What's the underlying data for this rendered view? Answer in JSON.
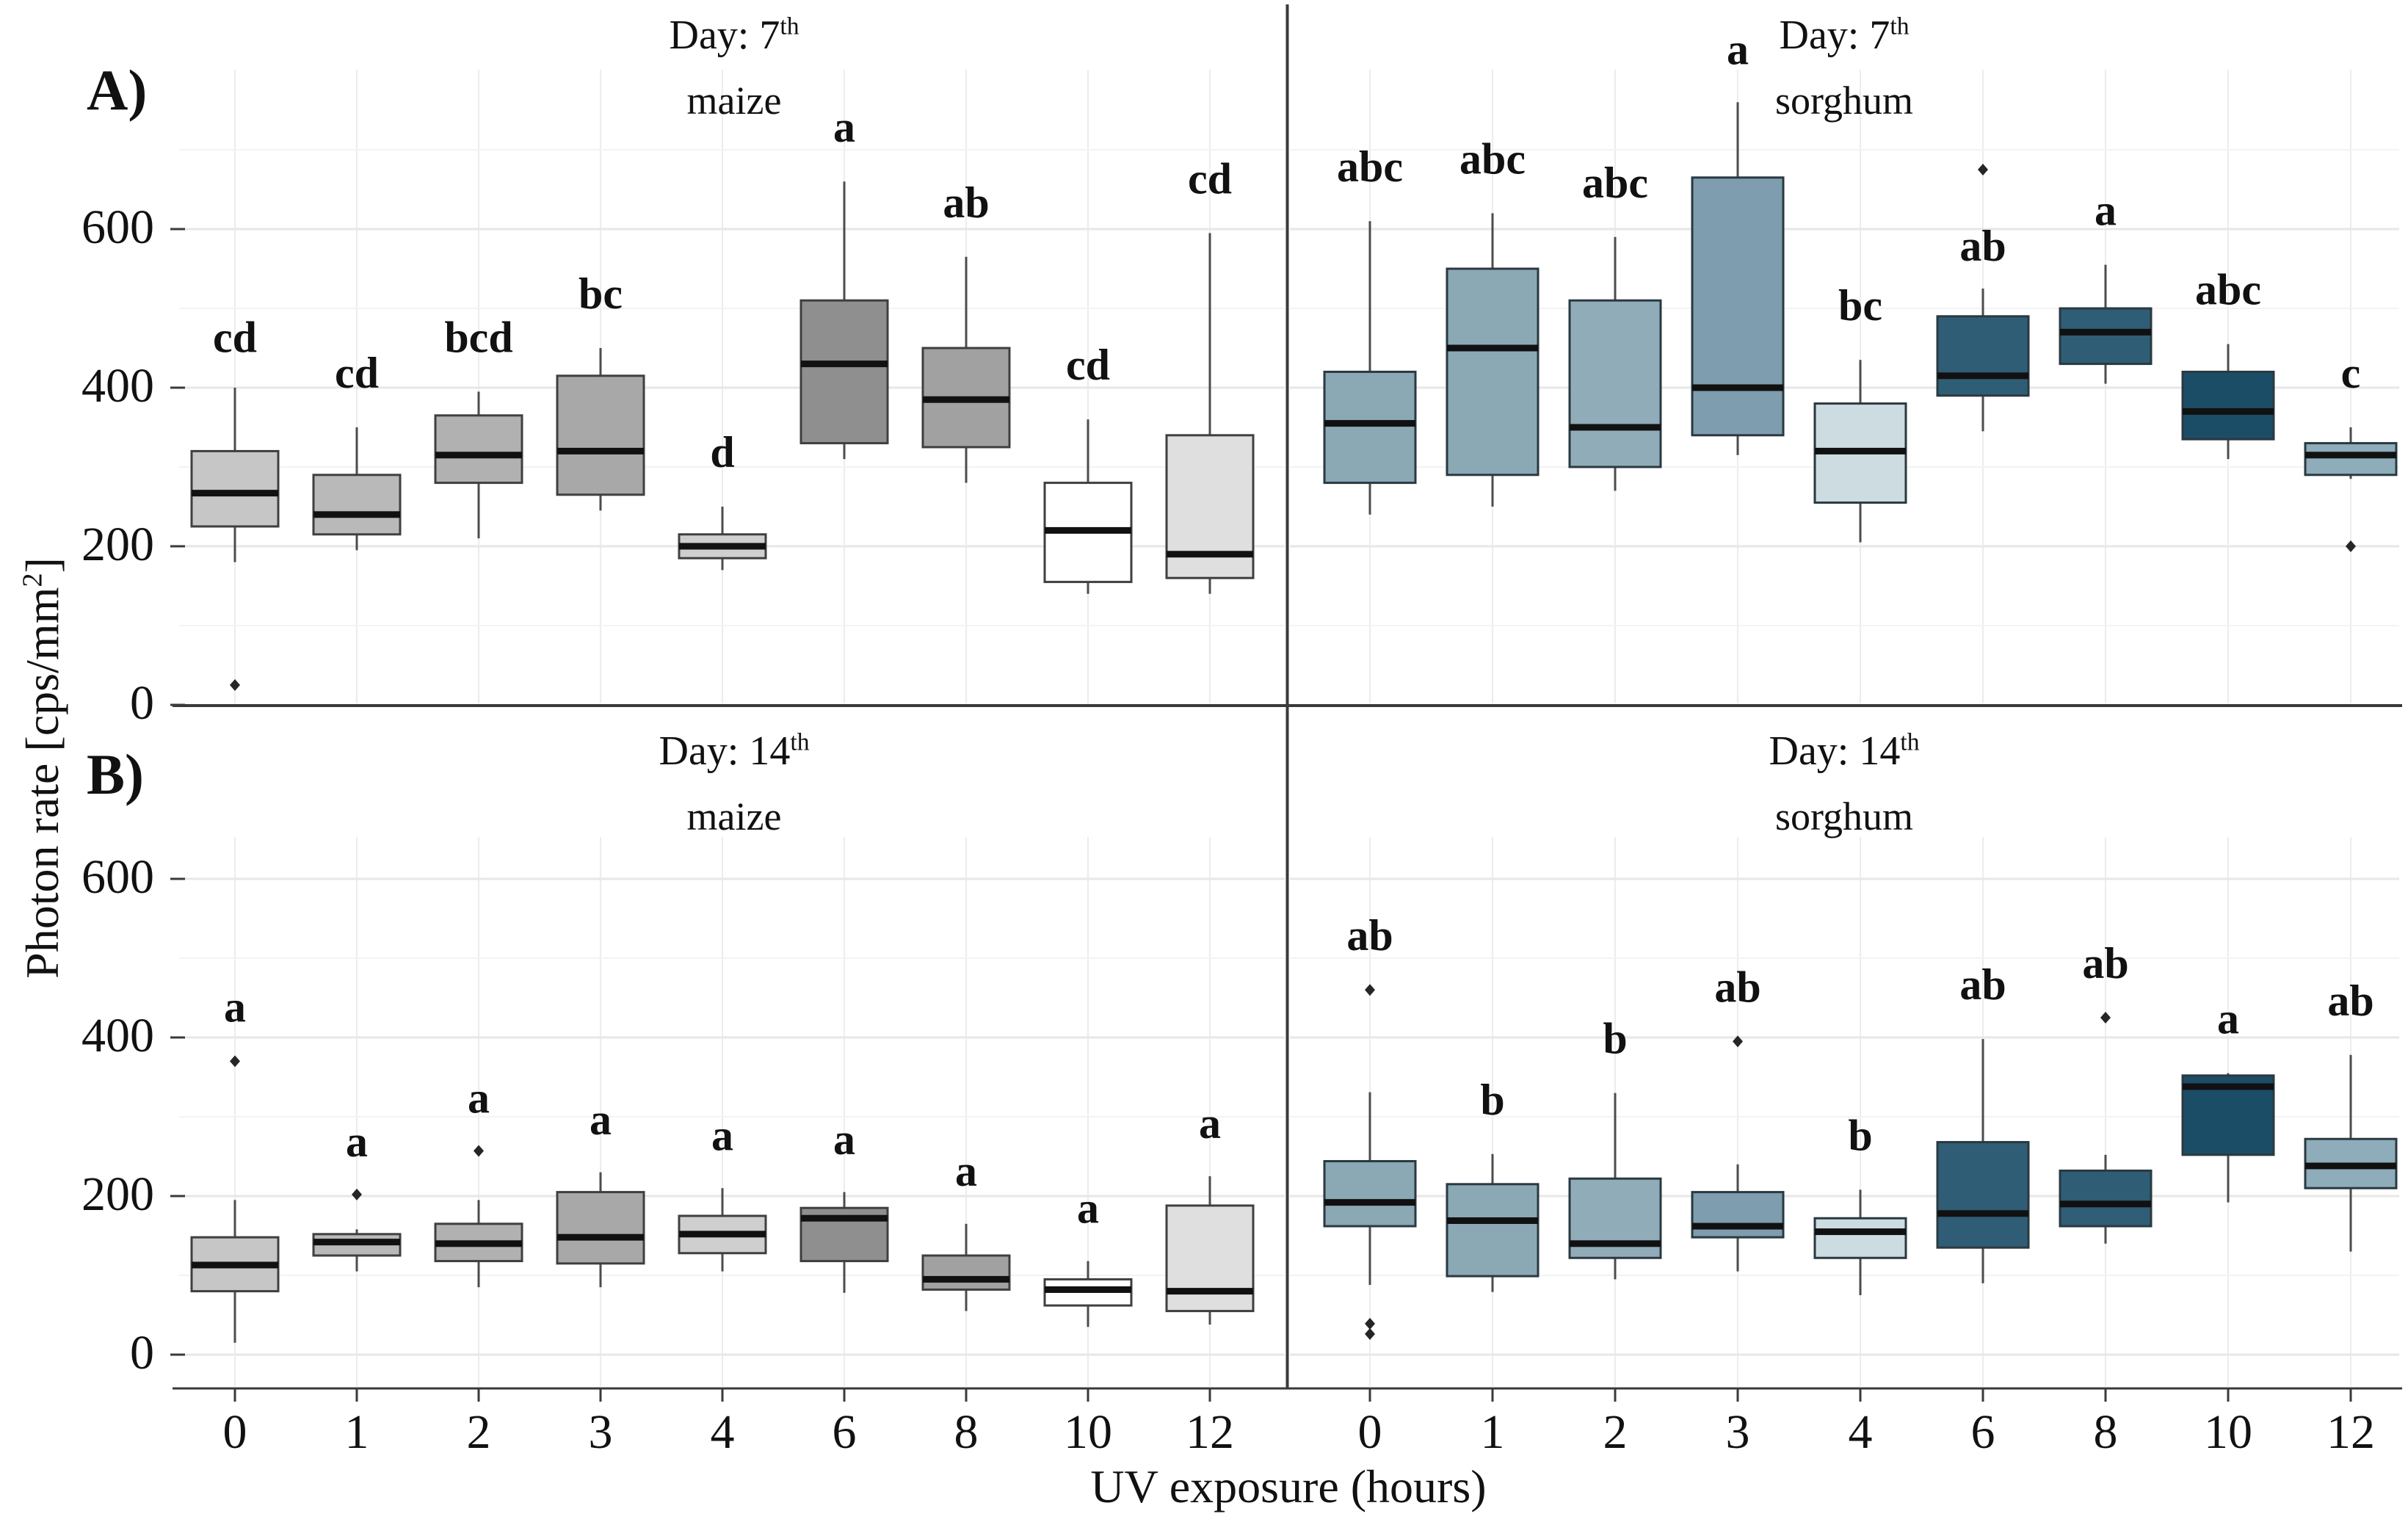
{
  "figure": {
    "panel_tag_a": "A)",
    "panel_tag_b": "B)",
    "y_axis_title_main": "Photon rate [cps/mm",
    "y_axis_title_sup": "2",
    "y_axis_title_close": "]",
    "x_axis_title": "UV exposure (hours)"
  },
  "axes": {
    "y_tick_labels": [
      "0",
      "200",
      "400",
      "600"
    ],
    "y_tick_values": [
      0,
      200,
      400,
      600
    ],
    "x_categories": [
      "0",
      "1",
      "2",
      "3",
      "4",
      "6",
      "8",
      "10",
      "12"
    ]
  },
  "colors": {
    "maize_stroke": "#3f3f3f",
    "sorghum_stroke": "#2a3940",
    "median": "#111111",
    "whisker": "#4c4c4c",
    "outlier": "#262626",
    "grid_major": "#e7e7e7",
    "grid_minor": "#f3f3f3",
    "grid_vertical": "#ececec",
    "axis_line": "#3a3a3a",
    "text": "#111111"
  },
  "chart_data": [
    {
      "id": "day7-maize",
      "type": "box",
      "row": "top",
      "side": "left",
      "title": {
        "prefix": "Day:",
        "value": "7",
        "sup": "th"
      },
      "species": "maize",
      "ylabel": "Photon rate [cps/mm2]",
      "ylim": [
        0,
        800
      ],
      "boxes": [
        {
          "cat": "0",
          "lo": 180,
          "q1": 225,
          "med": 267,
          "q3": 320,
          "hi": 400,
          "outliers": [
            25
          ],
          "fill": "#c6c6c6",
          "label": "cd",
          "label_v": 445
        },
        {
          "cat": "1",
          "lo": 195,
          "q1": 215,
          "med": 240,
          "q3": 290,
          "hi": 350,
          "outliers": [],
          "fill": "#b9b9b9",
          "label": "cd",
          "label_v": 400
        },
        {
          "cat": "2",
          "lo": 210,
          "q1": 280,
          "med": 315,
          "q3": 365,
          "hi": 395,
          "outliers": [],
          "fill": "#b1b1b1",
          "label": "bcd",
          "label_v": 445
        },
        {
          "cat": "3",
          "lo": 245,
          "q1": 265,
          "med": 320,
          "q3": 415,
          "hi": 450,
          "outliers": [],
          "fill": "#a8a8a8",
          "label": "bc",
          "label_v": 500
        },
        {
          "cat": "4",
          "lo": 170,
          "q1": 185,
          "med": 200,
          "q3": 215,
          "hi": 250,
          "outliers": [],
          "fill": "#cfcfcf",
          "label": "d",
          "label_v": 300
        },
        {
          "cat": "6",
          "lo": 310,
          "q1": 330,
          "med": 430,
          "q3": 510,
          "hi": 660,
          "outliers": [],
          "fill": "#8f8f8f",
          "label": "a",
          "label_v": 710
        },
        {
          "cat": "8",
          "lo": 280,
          "q1": 325,
          "med": 385,
          "q3": 450,
          "hi": 565,
          "outliers": [],
          "fill": "#a1a1a1",
          "label": "ab",
          "label_v": 615
        },
        {
          "cat": "10",
          "lo": 140,
          "q1": 155,
          "med": 220,
          "q3": 280,
          "hi": 360,
          "outliers": [],
          "fill": "#ffffff",
          "label": "cd",
          "label_v": 410
        },
        {
          "cat": "12",
          "lo": 140,
          "q1": 160,
          "med": 190,
          "q3": 340,
          "hi": 595,
          "outliers": [],
          "fill": "#dfdfdf",
          "label": "cd",
          "label_v": 645
        }
      ]
    },
    {
      "id": "day7-sorghum",
      "type": "box",
      "row": "top",
      "side": "right",
      "title": {
        "prefix": "Day:",
        "value": "7",
        "sup": "th"
      },
      "species": "sorghum",
      "ylabel": "Photon rate [cps/mm2]",
      "ylim": [
        0,
        800
      ],
      "boxes": [
        {
          "cat": "0",
          "lo": 240,
          "q1": 280,
          "med": 355,
          "q3": 420,
          "hi": 610,
          "outliers": [],
          "fill": "#8ba8b5",
          "label": "abc",
          "label_v": 660
        },
        {
          "cat": "1",
          "lo": 250,
          "q1": 290,
          "med": 450,
          "q3": 550,
          "hi": 620,
          "outliers": [],
          "fill": "#8ba8b5",
          "label": "abc",
          "label_v": 670
        },
        {
          "cat": "2",
          "lo": 270,
          "q1": 300,
          "med": 350,
          "q3": 510,
          "hi": 590,
          "outliers": [],
          "fill": "#90acb9",
          "label": "abc",
          "label_v": 640
        },
        {
          "cat": "3",
          "lo": 315,
          "q1": 340,
          "med": 400,
          "q3": 665,
          "hi": 760,
          "outliers": [],
          "fill": "#7e9dae",
          "label": "a",
          "label_v": 808
        },
        {
          "cat": "4",
          "lo": 205,
          "q1": 255,
          "med": 320,
          "q3": 380,
          "hi": 435,
          "outliers": [],
          "fill": "#cddce1",
          "label": "bc",
          "label_v": 485
        },
        {
          "cat": "6",
          "lo": 345,
          "q1": 390,
          "med": 415,
          "q3": 490,
          "hi": 525,
          "outliers": [
            675
          ],
          "fill": "#2f5d75",
          "label": "ab",
          "label_v": 560
        },
        {
          "cat": "8",
          "lo": 405,
          "q1": 430,
          "med": 470,
          "q3": 500,
          "hi": 555,
          "outliers": [],
          "fill": "#2f5d75",
          "label": "a",
          "label_v": 605
        },
        {
          "cat": "10",
          "lo": 310,
          "q1": 335,
          "med": 370,
          "q3": 420,
          "hi": 455,
          "outliers": [],
          "fill": "#1c4d67",
          "label": "abc",
          "label_v": 505
        },
        {
          "cat": "12",
          "lo": 285,
          "q1": 290,
          "med": 315,
          "q3": 330,
          "hi": 350,
          "outliers": [
            200
          ],
          "fill": "#8eacba",
          "label": "c",
          "label_v": 400
        }
      ]
    },
    {
      "id": "day14-maize",
      "type": "box",
      "row": "bottom",
      "side": "left",
      "title": {
        "prefix": "Day:",
        "value": "14",
        "sup": "th"
      },
      "species": "maize",
      "ylabel": "Photon rate [cps/mm2]",
      "ylim": [
        0,
        650
      ],
      "boxes": [
        {
          "cat": "0",
          "lo": 15,
          "q1": 80,
          "med": 113,
          "q3": 148,
          "hi": 195,
          "outliers": [
            370
          ],
          "fill": "#c6c6c6",
          "label": "a",
          "label_v": 420
        },
        {
          "cat": "1",
          "lo": 105,
          "q1": 125,
          "med": 142,
          "q3": 152,
          "hi": 158,
          "outliers": [
            202
          ],
          "fill": "#b9b9b9",
          "label": "a",
          "label_v": 250
        },
        {
          "cat": "2",
          "lo": 85,
          "q1": 118,
          "med": 140,
          "q3": 165,
          "hi": 195,
          "outliers": [
            257
          ],
          "fill": "#b1b1b1",
          "label": "a",
          "label_v": 305
        },
        {
          "cat": "3",
          "lo": 85,
          "q1": 115,
          "med": 148,
          "q3": 205,
          "hi": 230,
          "outliers": [],
          "fill": "#a8a8a8",
          "label": "a",
          "label_v": 278
        },
        {
          "cat": "4",
          "lo": 105,
          "q1": 128,
          "med": 152,
          "q3": 175,
          "hi": 210,
          "outliers": [],
          "fill": "#cfcfcf",
          "label": "a",
          "label_v": 258
        },
        {
          "cat": "6",
          "lo": 78,
          "q1": 118,
          "med": 172,
          "q3": 185,
          "hi": 205,
          "outliers": [],
          "fill": "#8f8f8f",
          "label": "a",
          "label_v": 253
        },
        {
          "cat": "8",
          "lo": 55,
          "q1": 82,
          "med": 95,
          "q3": 125,
          "hi": 165,
          "outliers": [],
          "fill": "#a1a1a1",
          "label": "a",
          "label_v": 213
        },
        {
          "cat": "10",
          "lo": 35,
          "q1": 62,
          "med": 82,
          "q3": 95,
          "hi": 118,
          "outliers": [],
          "fill": "#ffffff",
          "label": "a",
          "label_v": 166
        },
        {
          "cat": "12",
          "lo": 38,
          "q1": 55,
          "med": 80,
          "q3": 188,
          "hi": 225,
          "outliers": [],
          "fill": "#dfdfdf",
          "label": "a",
          "label_v": 273
        }
      ]
    },
    {
      "id": "day14-sorghum",
      "type": "box",
      "row": "bottom",
      "side": "right",
      "title": {
        "prefix": "Day:",
        "value": "14",
        "sup": "th"
      },
      "species": "sorghum",
      "ylabel": "Photon rate [cps/mm2]",
      "ylim": [
        0,
        650
      ],
      "boxes": [
        {
          "cat": "0",
          "lo": 88,
          "q1": 162,
          "med": 192,
          "q3": 244,
          "hi": 331,
          "outliers": [
            460,
            39,
            26
          ],
          "fill": "#8ba8b5",
          "label": "ab",
          "label_v": 510
        },
        {
          "cat": "1",
          "lo": 79,
          "q1": 99,
          "med": 169,
          "q3": 215,
          "hi": 253,
          "outliers": [],
          "fill": "#8ba8b5",
          "label": "b",
          "label_v": 303
        },
        {
          "cat": "2",
          "lo": 95,
          "q1": 122,
          "med": 140,
          "q3": 222,
          "hi": 330,
          "outliers": [],
          "fill": "#90acb9",
          "label": "b",
          "label_v": 380
        },
        {
          "cat": "3",
          "lo": 105,
          "q1": 148,
          "med": 162,
          "q3": 205,
          "hi": 240,
          "outliers": [
            395
          ],
          "fill": "#7e9dae",
          "label": "ab",
          "label_v": 445
        },
        {
          "cat": "4",
          "lo": 75,
          "q1": 122,
          "med": 155,
          "q3": 172,
          "hi": 208,
          "outliers": [],
          "fill": "#cddce1",
          "label": "b",
          "label_v": 258
        },
        {
          "cat": "6",
          "lo": 90,
          "q1": 135,
          "med": 178,
          "q3": 268,
          "hi": 398,
          "outliers": [],
          "fill": "#2f5d75",
          "label": "ab",
          "label_v": 448
        },
        {
          "cat": "8",
          "lo": 140,
          "q1": 162,
          "med": 190,
          "q3": 232,
          "hi": 252,
          "outliers": [
            425
          ],
          "fill": "#2f5d75",
          "label": "ab",
          "label_v": 475
        },
        {
          "cat": "10",
          "lo": 192,
          "q1": 252,
          "med": 338,
          "q3": 352,
          "hi": 355,
          "outliers": [],
          "fill": "#1c4d67",
          "label": "a",
          "label_v": 405
        },
        {
          "cat": "12",
          "lo": 130,
          "q1": 210,
          "med": 238,
          "q3": 272,
          "hi": 378,
          "outliers": [],
          "fill": "#8eacba",
          "label": "ab",
          "label_v": 428
        }
      ]
    }
  ]
}
